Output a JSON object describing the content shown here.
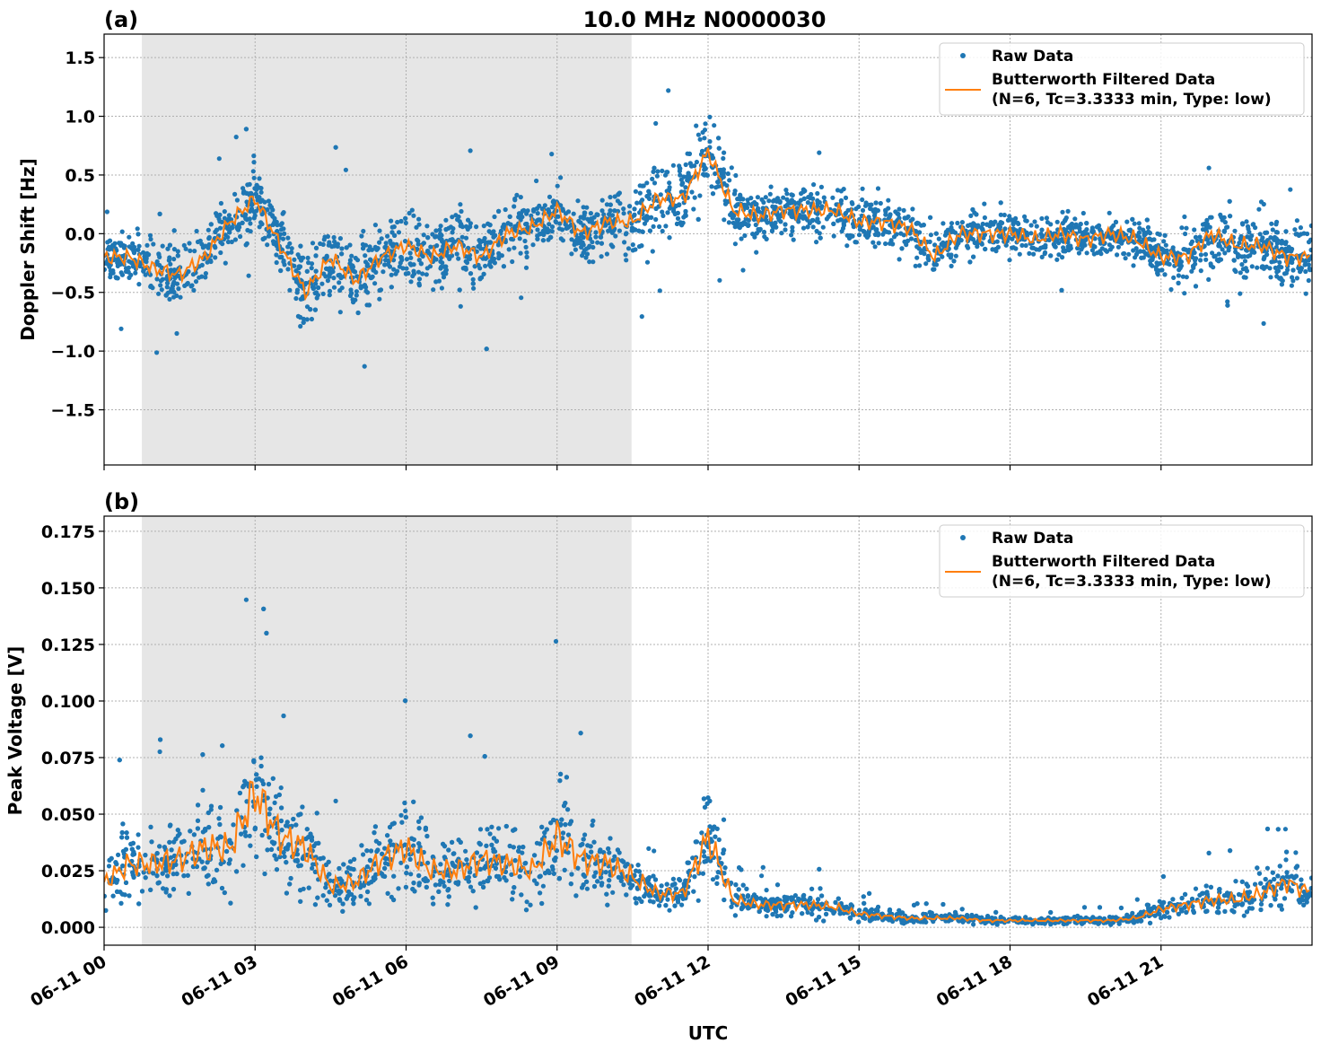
{
  "chart_data": [
    {
      "type": "scatter",
      "panel_label": "(a)",
      "title": "10.0 MHz N0000030",
      "ylabel": "Doppler Shift [Hz]",
      "xlabel": "",
      "xlim_hours": [
        0,
        24
      ],
      "ylim": [
        -1.97,
        1.7
      ],
      "yticks": [
        1.5,
        1.0,
        0.5,
        0.0,
        -0.5,
        -1.0,
        -1.5
      ],
      "ytick_labels": [
        "1.5",
        "1.0",
        "0.5",
        "0.0",
        "−0.5",
        "−1.0",
        "−1.5"
      ],
      "grid": true,
      "shaded_region_hours": [
        0.75,
        10.48
      ],
      "legend_placement": "top-right",
      "legend": [
        "Raw Data",
        "Butterworth Filtered Data",
        "(N=6, Tc=3.3333 min, Type: low)"
      ],
      "x_hours": [
        0,
        0.5,
        1,
        1.5,
        2,
        2.5,
        3,
        3.5,
        4,
        4.5,
        5,
        5.5,
        6,
        6.5,
        7,
        7.5,
        8,
        8.5,
        9,
        9.5,
        10,
        10.5,
        11,
        11.5,
        12,
        12.5,
        13,
        13.5,
        14,
        14.5,
        15,
        15.5,
        16,
        16.5,
        17,
        17.5,
        18,
        18.5,
        19,
        19.5,
        20,
        20.5,
        21,
        21.5,
        22,
        22.5,
        23,
        23.5,
        24
      ],
      "filtered": [
        -0.2,
        -0.2,
        -0.3,
        -0.35,
        -0.2,
        0.1,
        0.3,
        -0.1,
        -0.5,
        -0.2,
        -0.4,
        -0.2,
        -0.1,
        -0.2,
        -0.1,
        -0.2,
        0.0,
        0.05,
        0.2,
        0.0,
        0.1,
        0.1,
        0.3,
        0.3,
        0.7,
        0.2,
        0.15,
        0.2,
        0.2,
        0.2,
        0.1,
        0.1,
        0.05,
        -0.2,
        0.0,
        0.0,
        0.0,
        -0.05,
        0.0,
        -0.05,
        0.0,
        -0.05,
        -0.2,
        -0.2,
        0.0,
        -0.1,
        -0.1,
        -0.2,
        -0.2
      ],
      "raw_spread": [
        0.25,
        0.25,
        0.3,
        0.3,
        0.3,
        0.3,
        0.35,
        0.35,
        0.4,
        0.4,
        0.4,
        0.35,
        0.35,
        0.35,
        0.35,
        0.35,
        0.3,
        0.3,
        0.3,
        0.3,
        0.3,
        0.35,
        0.4,
        0.4,
        0.45,
        0.3,
        0.25,
        0.25,
        0.25,
        0.25,
        0.25,
        0.25,
        0.25,
        0.25,
        0.22,
        0.22,
        0.2,
        0.2,
        0.2,
        0.2,
        0.2,
        0.2,
        0.25,
        0.3,
        0.3,
        0.3,
        0.3,
        0.3,
        0.3
      ],
      "colors": {
        "raw": "#1f77b4",
        "filtered": "#ff7f0e",
        "shade": "#e6e6e6"
      }
    },
    {
      "type": "scatter",
      "panel_label": "(b)",
      "ylabel": "Peak Voltage [V]",
      "xlabel": "UTC",
      "xlim_hours": [
        0,
        24
      ],
      "ylim": [
        -0.0079,
        0.1817
      ],
      "yticks": [
        0.175,
        0.15,
        0.125,
        0.1,
        0.075,
        0.05,
        0.025,
        0.0
      ],
      "ytick_labels": [
        "0.175",
        "0.150",
        "0.125",
        "0.100",
        "0.075",
        "0.050",
        "0.025",
        "0.000"
      ],
      "xticks_hours": [
        0,
        3,
        6,
        9,
        12,
        15,
        18,
        21
      ],
      "xtick_labels": [
        "06-11 00",
        "06-11 03",
        "06-11 06",
        "06-11 09",
        "06-11 12",
        "06-11 15",
        "06-11 18",
        "06-11 21"
      ],
      "grid": true,
      "shaded_region_hours": [
        0.75,
        10.48
      ],
      "legend_placement": "top-right",
      "legend": [
        "Raw Data",
        "Butterworth Filtered Data",
        "(N=6, Tc=3.3333 min, Type: low)"
      ],
      "x_hours": [
        0,
        0.5,
        1,
        1.5,
        2,
        2.5,
        3,
        3.5,
        4,
        4.5,
        5,
        5.5,
        6,
        6.5,
        7,
        7.5,
        8,
        8.5,
        9,
        9.5,
        10,
        10.5,
        11,
        11.5,
        12,
        12.5,
        13,
        13.5,
        14,
        14.5,
        15,
        15.5,
        16,
        16.5,
        17,
        17.5,
        18,
        18.5,
        19,
        19.5,
        20,
        20.5,
        21,
        21.5,
        22,
        22.5,
        23,
        23.5,
        24
      ],
      "filtered": [
        0.02,
        0.028,
        0.028,
        0.03,
        0.035,
        0.035,
        0.06,
        0.04,
        0.035,
        0.018,
        0.02,
        0.03,
        0.035,
        0.025,
        0.025,
        0.03,
        0.028,
        0.025,
        0.04,
        0.03,
        0.028,
        0.022,
        0.015,
        0.015,
        0.04,
        0.012,
        0.01,
        0.01,
        0.01,
        0.009,
        0.006,
        0.005,
        0.004,
        0.004,
        0.004,
        0.003,
        0.003,
        0.003,
        0.003,
        0.003,
        0.003,
        0.004,
        0.008,
        0.01,
        0.012,
        0.012,
        0.015,
        0.02,
        0.015
      ],
      "raw_spread": [
        0.015,
        0.02,
        0.02,
        0.02,
        0.025,
        0.025,
        0.04,
        0.03,
        0.025,
        0.012,
        0.015,
        0.02,
        0.025,
        0.018,
        0.018,
        0.02,
        0.018,
        0.018,
        0.03,
        0.02,
        0.018,
        0.012,
        0.009,
        0.009,
        0.025,
        0.007,
        0.006,
        0.006,
        0.006,
        0.006,
        0.004,
        0.003,
        0.003,
        0.003,
        0.003,
        0.002,
        0.002,
        0.002,
        0.002,
        0.002,
        0.002,
        0.003,
        0.005,
        0.007,
        0.008,
        0.008,
        0.01,
        0.014,
        0.01
      ],
      "colors": {
        "raw": "#1f77b4",
        "filtered": "#ff7f0e",
        "shade": "#e6e6e6"
      }
    }
  ]
}
